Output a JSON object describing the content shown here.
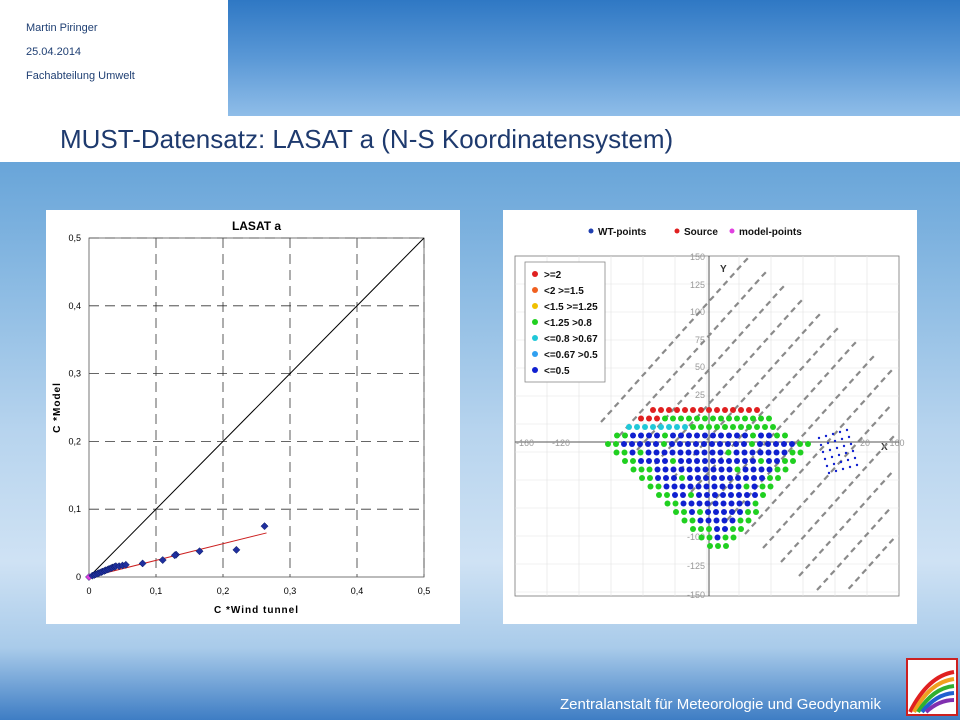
{
  "header": {
    "author": "Martin Piringer",
    "date": "25.04.2014",
    "department": "Fachabteilung Umwelt"
  },
  "title": "MUST-Datensatz: LASAT a (N-S Koordinatensystem)",
  "footer": "Zentralanstalt für Meteorologie und Geodynamik",
  "chart_data": [
    {
      "type": "scatter",
      "title": "LASAT a",
      "xlabel": "C *Wind tunnel",
      "ylabel": "C *Model",
      "xlim": [
        0,
        0.5
      ],
      "ylim": [
        0,
        0.5
      ],
      "xticks": [
        "0",
        "0,1",
        "0,2",
        "0,3",
        "0,4",
        "0,5"
      ],
      "yticks": [
        "0",
        "0,1",
        "0,2",
        "0,3",
        "0,4",
        "0,5"
      ],
      "grid": true,
      "grid_style": "dashed",
      "colors": {
        "points": "#1f2f9e",
        "identity_line": "#000000",
        "fit_line": "#cc2020",
        "zero_point": "#e040e0"
      },
      "points": [
        [
          0.0,
          0.0
        ],
        [
          0.005,
          0.002
        ],
        [
          0.008,
          0.003
        ],
        [
          0.01,
          0.004
        ],
        [
          0.013,
          0.005
        ],
        [
          0.015,
          0.006
        ],
        [
          0.018,
          0.007
        ],
        [
          0.02,
          0.008
        ],
        [
          0.023,
          0.009
        ],
        [
          0.025,
          0.01
        ],
        [
          0.028,
          0.011
        ],
        [
          0.03,
          0.012
        ],
        [
          0.033,
          0.013
        ],
        [
          0.035,
          0.014
        ],
        [
          0.038,
          0.015
        ],
        [
          0.04,
          0.016
        ],
        [
          0.045,
          0.016
        ],
        [
          0.05,
          0.017
        ],
        [
          0.055,
          0.018
        ],
        [
          0.08,
          0.02
        ],
        [
          0.11,
          0.025
        ],
        [
          0.13,
          0.033
        ],
        [
          0.128,
          0.032
        ],
        [
          0.165,
          0.038
        ],
        [
          0.22,
          0.04
        ],
        [
          0.262,
          0.075
        ]
      ],
      "lines": [
        {
          "kind": "identity",
          "from": [
            0,
            0
          ],
          "to": [
            0.5,
            0.5
          ]
        },
        {
          "kind": "fit",
          "from": [
            0,
            0
          ],
          "to": [
            0.265,
            0.065
          ]
        }
      ]
    },
    {
      "type": "scatter",
      "legend_top": [
        "WT-points",
        "Source",
        "model-points"
      ],
      "legend_top_colors": [
        "#1f3fb0",
        "#e02020",
        "#e040e0"
      ],
      "legend_classes": [
        {
          "label": ">=2",
          "color": "#e02020"
        },
        {
          "label": "<2 >=1.5",
          "color": "#f06020"
        },
        {
          "label": "<1.5 >=1.25",
          "color": "#f0c000"
        },
        {
          "label": "<1.25 >0.8",
          "color": "#20d020"
        },
        {
          "label": "<=0.8 >0.67",
          "color": "#20c8d8"
        },
        {
          "label": "<=0.67 >0.5",
          "color": "#30a0f0"
        },
        {
          "label": "<=0.5",
          "color": "#1020d0"
        }
      ],
      "axis_x_label": "X",
      "axis_y_label": "Y",
      "xticks": [
        "-160",
        "-120",
        "20",
        "160"
      ],
      "yticks": [
        "150",
        "125",
        "100",
        "75",
        "50",
        "25",
        "-100",
        "-125",
        "-150"
      ],
      "grid": true,
      "legend_placement": "top-left"
    }
  ]
}
